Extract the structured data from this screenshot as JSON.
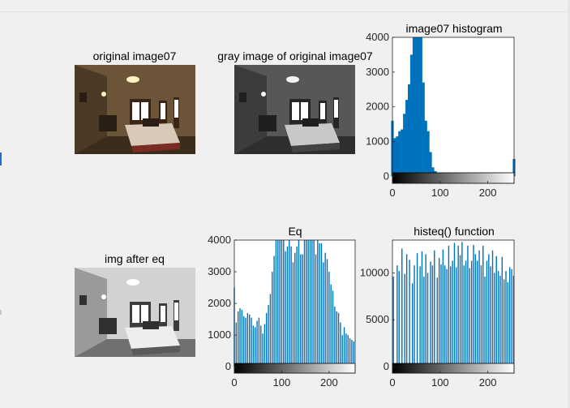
{
  "images": [
    {
      "title": "original image07",
      "style": "color"
    },
    {
      "title": "gray image of original image07",
      "style": "gray"
    },
    {
      "title": "img after eq",
      "style": "equalized"
    }
  ],
  "chart_data": [
    {
      "type": "bar",
      "title": "image07 histogram",
      "xlim": [
        0,
        255
      ],
      "ylim": [
        -200,
        4000
      ],
      "xticks": [
        0,
        100,
        200
      ],
      "yticks": [
        0,
        1000,
        2000,
        3000,
        4000
      ],
      "bar_color": "#0072bd",
      "colorbar": true,
      "x": [
        0,
        5,
        10,
        15,
        20,
        25,
        30,
        35,
        40,
        45,
        50,
        55,
        60,
        65,
        70,
        75,
        80,
        85,
        90,
        95,
        100,
        105,
        110,
        115,
        120,
        125,
        130,
        135,
        140,
        145,
        150,
        155,
        160,
        165,
        170,
        175,
        180,
        185,
        190,
        195,
        200,
        205,
        210,
        215,
        220,
        225,
        230,
        235,
        240,
        245,
        250,
        255
      ],
      "values": [
        1600,
        1100,
        1150,
        1300,
        1350,
        1800,
        2200,
        2650,
        3500,
        4000,
        4000,
        4000,
        4000,
        2700,
        1600,
        1300,
        700,
        260,
        150,
        100,
        80,
        60,
        45,
        35,
        30,
        25,
        20,
        18,
        15,
        12,
        10,
        10,
        8,
        8,
        6,
        6,
        5,
        5,
        5,
        5,
        5,
        5,
        5,
        5,
        5,
        5,
        5,
        5,
        6,
        10,
        60,
        500
      ]
    },
    {
      "type": "bar",
      "title": "Eq",
      "xlim": [
        0,
        255
      ],
      "ylim": [
        -200,
        4000
      ],
      "xticks": [
        0,
        100,
        200
      ],
      "yticks": [
        0,
        1000,
        2000,
        3000,
        4000
      ],
      "bar_color": "#0072bd",
      "colorbar": true,
      "x": [
        0,
        4,
        8,
        12,
        16,
        20,
        24,
        28,
        32,
        36,
        40,
        44,
        48,
        52,
        56,
        60,
        64,
        68,
        72,
        76,
        80,
        84,
        88,
        92,
        96,
        100,
        104,
        108,
        112,
        116,
        120,
        124,
        128,
        132,
        136,
        140,
        144,
        148,
        152,
        156,
        160,
        164,
        168,
        172,
        176,
        180,
        184,
        188,
        192,
        196,
        200,
        204,
        208,
        212,
        216,
        220,
        224,
        228,
        232,
        236,
        240,
        244,
        248,
        252
      ],
      "values": [
        2500,
        1400,
        1750,
        1850,
        1800,
        1600,
        1550,
        1700,
        1650,
        1550,
        1300,
        1250,
        1450,
        1550,
        1300,
        1050,
        1350,
        1700,
        1950,
        2300,
        3000,
        3500,
        4000,
        4000,
        4000,
        4000,
        4000,
        3650,
        3800,
        4000,
        3800,
        3300,
        3600,
        3800,
        4000,
        3550,
        3550,
        4000,
        4000,
        4000,
        4000,
        4000,
        4000,
        3550,
        4000,
        3900,
        3900,
        3300,
        3600,
        3400,
        3000,
        2600,
        2400,
        1900,
        1750,
        1700,
        1400,
        1000,
        1250,
        1050,
        1000,
        900,
        850,
        800
      ]
    },
    {
      "type": "bar",
      "title": "histeq() function",
      "xlim": [
        0,
        255
      ],
      "ylim": [
        -700,
        13500
      ],
      "xticks": [
        0,
        100,
        200
      ],
      "yticks": [
        0,
        5000,
        10000
      ],
      "bar_color": "#0072bd",
      "colorbar": true,
      "x": [
        2,
        10,
        14,
        20,
        26,
        30,
        36,
        42,
        46,
        52,
        58,
        62,
        66,
        70,
        74,
        80,
        84,
        88,
        94,
        98,
        102,
        106,
        110,
        114,
        118,
        122,
        126,
        130,
        134,
        138,
        142,
        146,
        150,
        154,
        158,
        162,
        166,
        170,
        174,
        178,
        182,
        186,
        190,
        194,
        198,
        202,
        206,
        210,
        214,
        218,
        222,
        226,
        230,
        234,
        238,
        242,
        246,
        250,
        254
      ],
      "values": [
        9600,
        10800,
        10200,
        12600,
        9900,
        12000,
        11400,
        8900,
        10800,
        12100,
        10700,
        12300,
        9600,
        12000,
        10000,
        11200,
        10800,
        12400,
        9500,
        11600,
        10900,
        12500,
        10800,
        10400,
        12900,
        10700,
        11300,
        13200,
        10600,
        12900,
        11900,
        13300,
        10800,
        11300,
        12900,
        10500,
        11300,
        13000,
        12000,
        11300,
        12400,
        10800,
        12900,
        9600,
        11300,
        12000,
        10700,
        12400,
        10000,
        11800,
        10200,
        9700,
        11700,
        9300,
        10200,
        9000,
        10600,
        10400,
        9700
      ]
    }
  ]
}
